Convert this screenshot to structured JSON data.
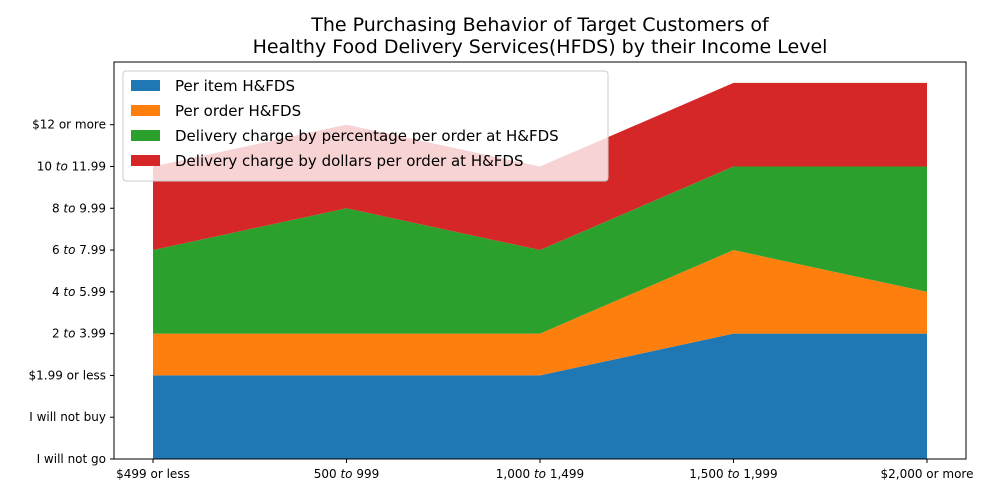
{
  "chart_data": {
    "type": "area",
    "stacked": true,
    "title_lines": [
      "The Purchasing Behavior of Target Customers of",
      "Healthy Food Delivery Services(HFDS) by their Income Level"
    ],
    "categories": [
      "$499 or less",
      "500 to 999",
      "1,000 to 1,499",
      "1,500 to 1,999",
      "$2,000 or more"
    ],
    "y_tick_labels": [
      "I will not go",
      "I will not buy",
      "$1.99 or less",
      "2 to 3.99",
      "4 to 5.99",
      "6 to 7.99",
      "8 to 9.99",
      "10 to 11.99",
      "$12 or more"
    ],
    "ylim": [
      0,
      9.5
    ],
    "series": [
      {
        "name": "Per item H&FDS",
        "color": "#1f77b4",
        "values": [
          2,
          2,
          2,
          3,
          3
        ]
      },
      {
        "name": "Per order H&FDS",
        "color": "#ff7f0e",
        "values": [
          1,
          1,
          1,
          2,
          1
        ]
      },
      {
        "name": "Delivery charge by percentage per order at H&FDS",
        "color": "#2ca02c",
        "values": [
          2,
          3,
          2,
          2,
          3
        ]
      },
      {
        "name": "Delivery charge by dollars per order at H&FDS",
        "color": "#d62728",
        "values": [
          2,
          2,
          2,
          2,
          2
        ]
      }
    ],
    "legend_position": "upper-left",
    "grid": false
  }
}
